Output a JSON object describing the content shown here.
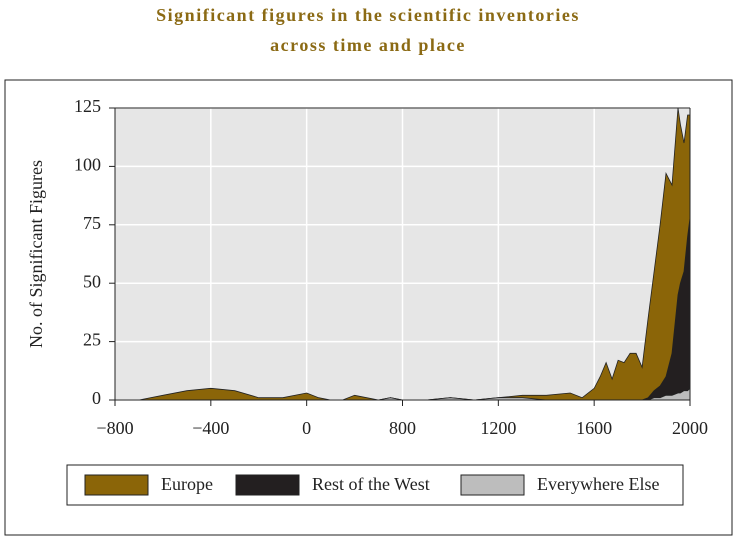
{
  "chart_data": {
    "type": "area",
    "title": [
      "Significant figures in the scientific inventories",
      "across time and place"
    ],
    "y_label": "No. of Significant Figures",
    "x": [
      -800,
      -700,
      -600,
      -500,
      -400,
      -300,
      -200,
      -100,
      0,
      100,
      200,
      300,
      400,
      500,
      600,
      700,
      800,
      900,
      1000,
      1100,
      1200,
      1300,
      1400,
      1500,
      1550,
      1600,
      1625,
      1650,
      1675,
      1700,
      1725,
      1750,
      1775,
      1800,
      1825,
      1850,
      1875,
      1900,
      1925,
      1950,
      1960,
      1975,
      1990,
      2000
    ],
    "series": [
      {
        "name": "Europe",
        "color": "#8b6508",
        "values": [
          0,
          0,
          2,
          4,
          5,
          4,
          1,
          1,
          3,
          1,
          0,
          0,
          2,
          1,
          0,
          1,
          0,
          0,
          1,
          0,
          1,
          2,
          2,
          3,
          1,
          5,
          10,
          16,
          9,
          17,
          16,
          20,
          20,
          14,
          35,
          55,
          75,
          97,
          92,
          125,
          118,
          110,
          122,
          122
        ]
      },
      {
        "name": "Rest of the West",
        "color": "#231f20",
        "values": [
          0,
          0,
          0,
          0,
          0,
          0,
          0,
          0,
          0,
          0,
          0,
          0,
          0,
          0,
          0,
          0,
          0,
          0,
          0,
          0,
          0,
          0,
          0,
          0,
          0,
          0,
          0,
          0,
          0,
          0,
          0,
          0,
          0,
          0,
          1,
          4,
          6,
          10,
          20,
          45,
          50,
          55,
          70,
          78
        ]
      },
      {
        "name": "Everywhere Else",
        "color": "#bdbdbd",
        "values": [
          0,
          0,
          0,
          0,
          0,
          0,
          0,
          0,
          0,
          0,
          0,
          0,
          0,
          0,
          0,
          1,
          0,
          0,
          1,
          0,
          1,
          1,
          0,
          0,
          0,
          0,
          0,
          0,
          0,
          0,
          0,
          0,
          0,
          0,
          0,
          1,
          1,
          2,
          2,
          3,
          3,
          4,
          4,
          5
        ]
      }
    ],
    "xlim": [
      -800,
      2000
    ],
    "xticks": [
      {
        "value": -800,
        "label": "−800"
      },
      {
        "value": -400,
        "label": "−400"
      },
      0,
      800,
      1200,
      1600,
      2000
    ],
    "ylim": [
      0,
      125
    ],
    "yticks": [
      0,
      25,
      50,
      75,
      100,
      125
    ],
    "grid": true,
    "legend": "bottom"
  }
}
